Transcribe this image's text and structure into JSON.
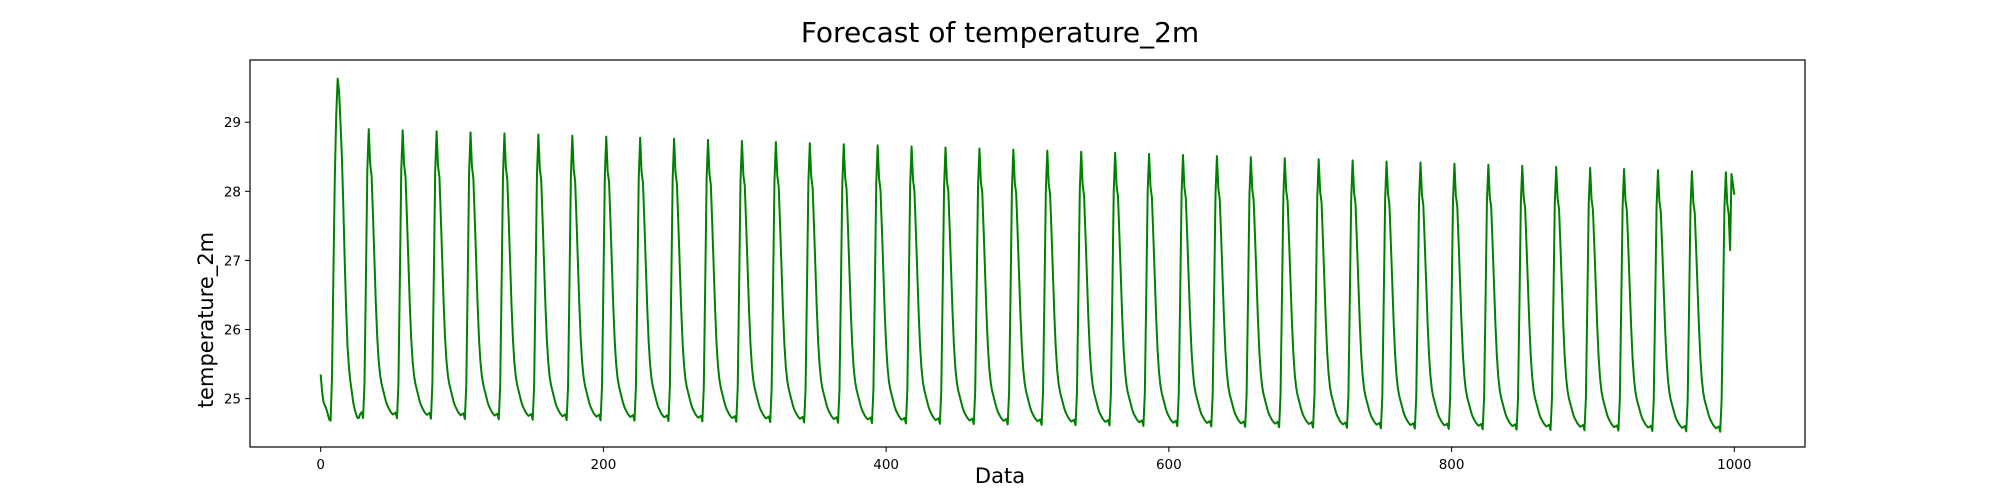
{
  "chart_data": {
    "type": "line",
    "title": "Forecast of temperature_2m",
    "xlabel": "Data",
    "ylabel": "temperature_2m",
    "xlim": [
      -50,
      1050
    ],
    "ylim": [
      24.3,
      29.9
    ],
    "grid": false,
    "legend": "none",
    "xticks": [
      0,
      200,
      400,
      600,
      800,
      1000
    ],
    "yticks": [
      25,
      26,
      27,
      28,
      29
    ],
    "colors": {
      "line": "#008000",
      "axes": "#000000",
      "background": "#ffffff"
    },
    "series": [
      {
        "cycle_hours": 24,
        "initial_points": [
          [
            0,
            25.35
          ],
          [
            1,
            25.1
          ],
          [
            2,
            24.95
          ],
          [
            3,
            24.9
          ],
          [
            4,
            24.85
          ],
          [
            5,
            24.78
          ],
          [
            6,
            24.7
          ],
          [
            7,
            24.68
          ],
          [
            8,
            25.3
          ],
          [
            9,
            26.8
          ],
          [
            10,
            28.2
          ],
          [
            11,
            29.1
          ],
          [
            12,
            29.63
          ],
          [
            13,
            29.45
          ],
          [
            14,
            29.0
          ],
          [
            15,
            28.5
          ],
          [
            16,
            27.8
          ],
          [
            17,
            27.0
          ],
          [
            18,
            26.3
          ],
          [
            19,
            25.75
          ],
          [
            20,
            25.45
          ],
          [
            21,
            25.25
          ],
          [
            22,
            25.1
          ],
          [
            23,
            24.95
          ],
          [
            24,
            24.85
          ],
          [
            25,
            24.78
          ],
          [
            26,
            24.72
          ],
          [
            27,
            24.72
          ],
          [
            28,
            24.78
          ]
        ],
        "cycle_max_first": 28.9,
        "cycle_max_last": 28.27,
        "cycle_min_first": 24.72,
        "cycle_min_last": 24.52,
        "last_points": [
          [
            998,
            28.25
          ],
          [
            1000,
            27.95
          ]
        ]
      }
    ]
  }
}
